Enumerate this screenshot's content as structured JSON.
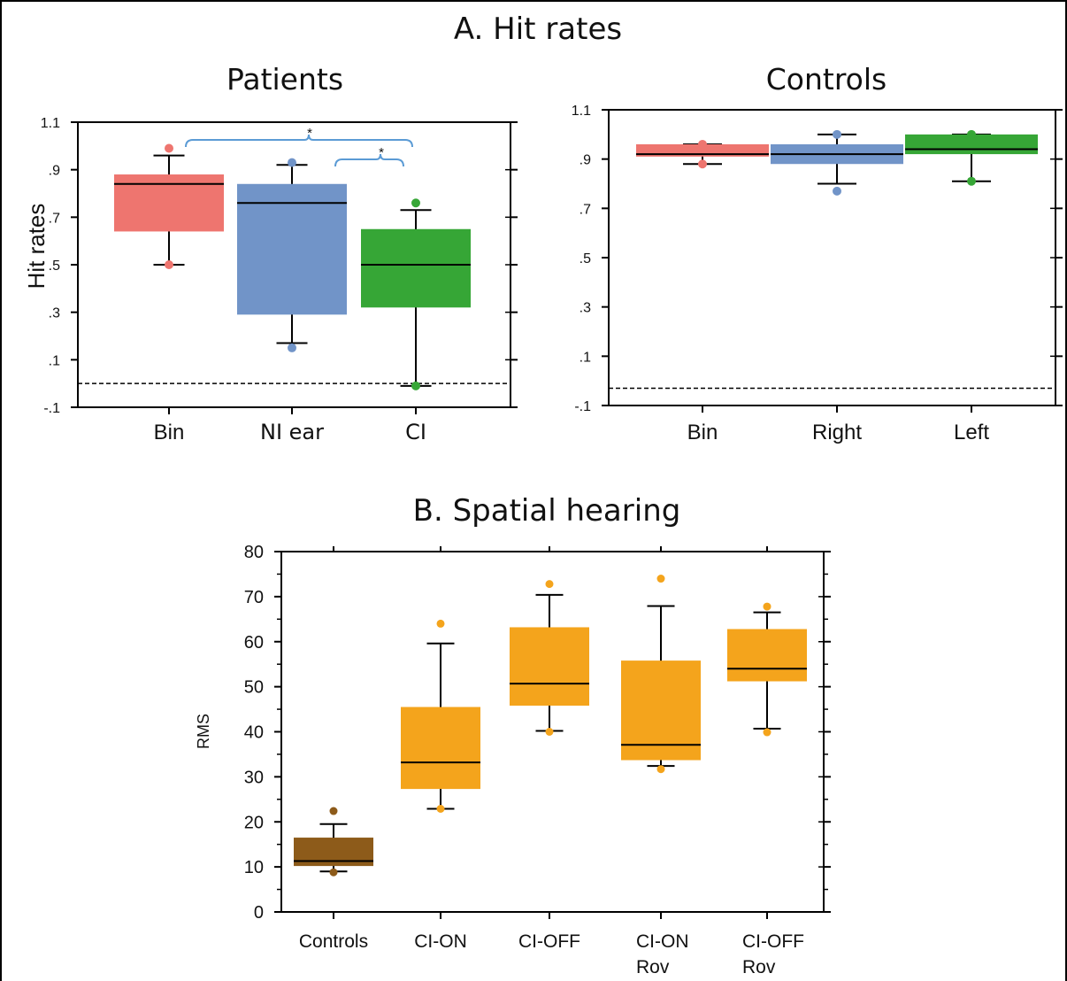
{
  "figure_title_a": "A. Hit rates",
  "figure_title_b": "B. Spatial hearing",
  "chart_data": [
    {
      "type": "box",
      "title": "Patients",
      "ylabel": "Hit rates",
      "ylim": [
        -0.1,
        1.1
      ],
      "yticks": [
        "1.1",
        ".9",
        ".7",
        ".5",
        ".3",
        ".1",
        "-.1"
      ],
      "reference_line": 0.0,
      "categories": [
        "Bin",
        "NI ear",
        "CI"
      ],
      "colors": [
        "#ee756f",
        "#7194c8",
        "#36a636"
      ],
      "boxes": [
        {
          "whisker_low": 0.5,
          "q1": 0.64,
          "median": 0.84,
          "q3": 0.88,
          "whisker_high": 0.96,
          "outliers": [
            0.5,
            0.99
          ]
        },
        {
          "whisker_low": 0.17,
          "q1": 0.29,
          "median": 0.76,
          "q3": 0.84,
          "whisker_high": 0.92,
          "outliers": [
            0.15,
            0.93
          ]
        },
        {
          "whisker_low": -0.01,
          "q1": 0.32,
          "median": 0.5,
          "q3": 0.65,
          "whisker_high": 0.73,
          "outliers": [
            -0.01,
            0.76
          ]
        }
      ],
      "significance": [
        {
          "from": "Bin",
          "to": "CI",
          "label": "*"
        },
        {
          "from": "NI ear",
          "to": "CI",
          "label": "*"
        }
      ]
    },
    {
      "type": "box",
      "title": "Controls",
      "ylabel": "",
      "ylim": [
        -0.1,
        1.1
      ],
      "yticks": [
        "1.1",
        ".9",
        ".7",
        ".5",
        ".3",
        ".1",
        "-.1"
      ],
      "reference_line": -0.03,
      "categories": [
        "Bin",
        "Right",
        "Left"
      ],
      "colors": [
        "#ee756f",
        "#7194c8",
        "#36a636"
      ],
      "boxes": [
        {
          "whisker_low": 0.88,
          "q1": 0.91,
          "median": 0.92,
          "q3": 0.96,
          "whisker_high": 0.96,
          "outliers": [
            0.88,
            0.96
          ]
        },
        {
          "whisker_low": 0.8,
          "q1": 0.88,
          "median": 0.92,
          "q3": 0.96,
          "whisker_high": 1.0,
          "outliers": [
            0.77,
            1.0
          ]
        },
        {
          "whisker_low": 0.81,
          "q1": 0.92,
          "median": 0.94,
          "q3": 1.0,
          "whisker_high": 1.0,
          "outliers": [
            0.81,
            1.0
          ]
        }
      ]
    },
    {
      "type": "box",
      "title": "",
      "ylabel": "RMS",
      "ylim": [
        0,
        80
      ],
      "yticks": [
        "0",
        "10",
        "20",
        "30",
        "40",
        "50",
        "60",
        "70",
        "80"
      ],
      "categories": [
        [
          "Controls"
        ],
        [
          "CI-ON"
        ],
        [
          "CI-OFF"
        ],
        [
          "CI-ON",
          "Rov"
        ],
        [
          "CI-OFF",
          "Rov"
        ]
      ],
      "colors": [
        "#8d5b1a",
        "#f4a41c",
        "#f4a41c",
        "#f4a41c",
        "#f4a41c"
      ],
      "boxes": [
        {
          "whisker_low": 9.0,
          "q1": 10.2,
          "median": 11.3,
          "q3": 16.5,
          "whisker_high": 19.5,
          "outliers": [
            8.8,
            22.4
          ]
        },
        {
          "whisker_low": 22.9,
          "q1": 27.3,
          "median": 33.2,
          "q3": 45.5,
          "whisker_high": 59.6,
          "outliers": [
            22.9,
            64.0
          ]
        },
        {
          "whisker_low": 40.2,
          "q1": 45.8,
          "median": 50.7,
          "q3": 63.2,
          "whisker_high": 70.4,
          "outliers": [
            40.0,
            72.8
          ]
        },
        {
          "whisker_low": 32.4,
          "q1": 33.7,
          "median": 37.1,
          "q3": 55.8,
          "whisker_high": 67.9,
          "outliers": [
            31.7,
            74.0
          ]
        },
        {
          "whisker_low": 40.7,
          "q1": 51.2,
          "median": 54.0,
          "q3": 62.8,
          "whisker_high": 66.5,
          "outliers": [
            39.9,
            67.8
          ]
        }
      ]
    }
  ]
}
